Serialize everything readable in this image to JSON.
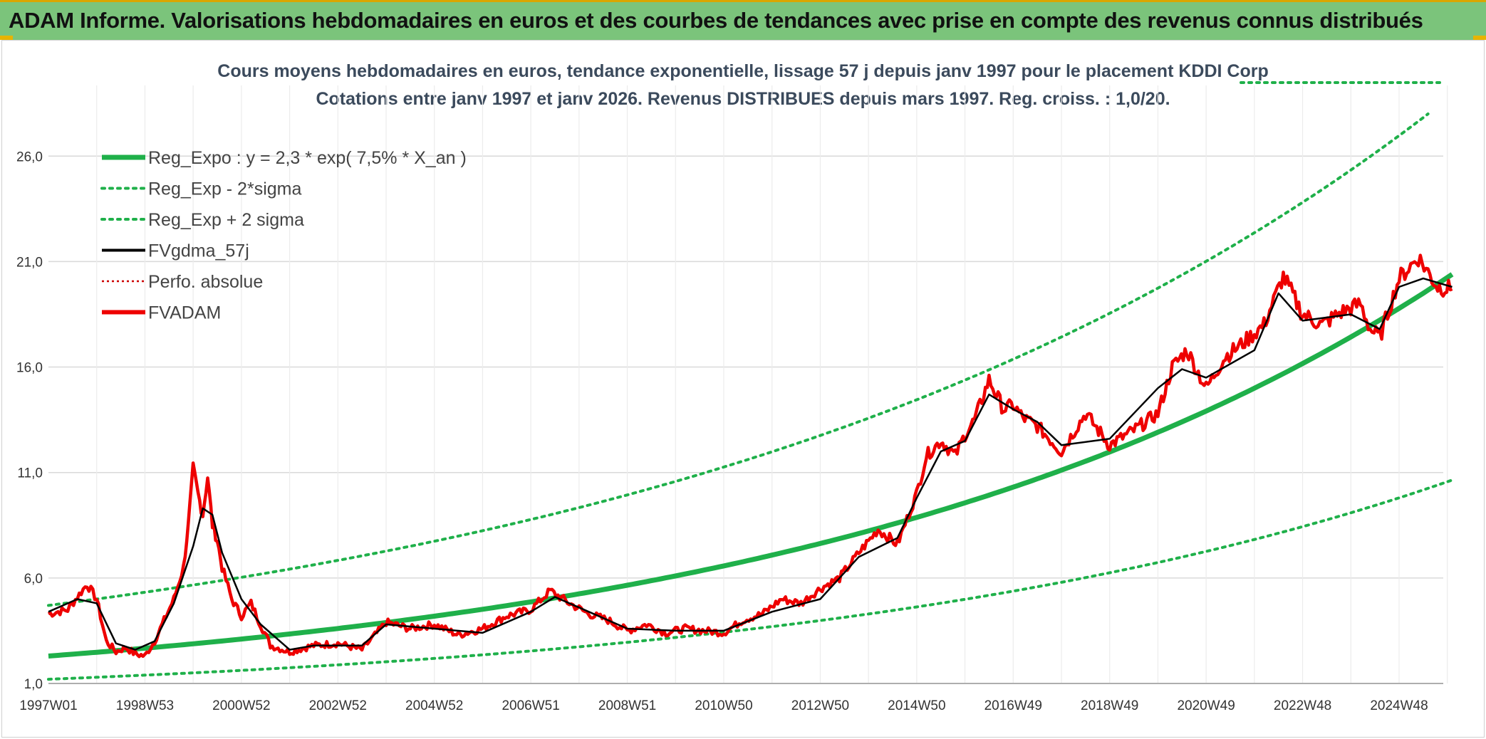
{
  "header": {
    "title": "ADAM Informe. Valorisations hebdomadaires en euros et des courbes de tendances avec prise en compte des revenus connus distribués"
  },
  "colors": {
    "banner": "#7bc47b",
    "regression": "#1fb04a",
    "smoothed": "#000000",
    "adam": "#ee0000",
    "perfo": "#cc0000"
  },
  "chart_data": {
    "type": "line",
    "title": "Cours moyens hebdomadaires en euros, tendance exponentielle, lissage 57 j depuis janv 1997 pour le placement KDDI Corp",
    "subtitle": "Cotations entre janv 1997 et janv 2026. Revenus DISTRIBUES depuis mars 1997. Reg. croiss. : 1,0/20.",
    "xlabel": "",
    "ylabel": "",
    "x_unit": "years since 1997W01",
    "xlim": [
      0,
      29.1
    ],
    "ylim": [
      1.0,
      28.0
    ],
    "x_ticks": [
      {
        "label": "1997W01",
        "x": 0
      },
      {
        "label": "1998W53",
        "x": 2
      },
      {
        "label": "2000W52",
        "x": 4
      },
      {
        "label": "2002W52",
        "x": 6
      },
      {
        "label": "2004W52",
        "x": 8
      },
      {
        "label": "2006W51",
        "x": 10
      },
      {
        "label": "2008W51",
        "x": 12
      },
      {
        "label": "2010W50",
        "x": 14
      },
      {
        "label": "2012W50",
        "x": 16
      },
      {
        "label": "2014W50",
        "x": 18
      },
      {
        "label": "2016W49",
        "x": 20
      },
      {
        "label": "2018W49",
        "x": 22
      },
      {
        "label": "2020W49",
        "x": 24
      },
      {
        "label": "2022W48",
        "x": 26
      },
      {
        "label": "2024W48",
        "x": 28
      }
    ],
    "y_ticks": [
      {
        "label": "1,0",
        "y": 1.0
      },
      {
        "label": "6,0",
        "y": 6.0
      },
      {
        "label": "11,0",
        "y": 11.0
      },
      {
        "label": "16,0",
        "y": 16.0
      },
      {
        "label": "21,0",
        "y": 21.0
      },
      {
        "label": "26,0",
        "y": 26.0
      }
    ],
    "legend": [
      {
        "label": "Reg_Expo : y = 2,3 * exp( 7,5% *  X_an )",
        "style": "solid-thick",
        "color": "#1fb04a"
      },
      {
        "label": "Reg_Exp - 2*sigma",
        "style": "dotted",
        "color": "#1fb04a"
      },
      {
        "label": "Reg_Exp + 2 sigma",
        "style": "dotted",
        "color": "#1fb04a"
      },
      {
        "label": "FVgdma_57j",
        "style": "solid",
        "color": "#000000"
      },
      {
        "label": "Perfo. absolue",
        "style": "dotted-thin",
        "color": "#cc0000"
      },
      {
        "label": "FVADAM",
        "style": "solid-thick",
        "color": "#ee0000"
      }
    ],
    "legend_position": "top-left",
    "series": [
      {
        "name": "Reg_Expo : y = 2,3 * exp( 7,5% *  X_an )",
        "kind": "exponential",
        "a": 2.3,
        "rate": 0.075,
        "x": [
          0,
          29.1
        ]
      },
      {
        "name": "Reg_Exp - 2*sigma",
        "kind": "exponential",
        "a": 1.2,
        "rate": 0.075,
        "x": [
          0,
          29.1
        ]
      },
      {
        "name": "Reg_Exp + 2 sigma",
        "kind": "exponential",
        "a": 4.7,
        "rate": 0.0624,
        "x": [
          0,
          29.1
        ],
        "clip_above_ylim": true
      },
      {
        "name": "FVADAM",
        "x": [
          0,
          0.4,
          0.8,
          1.0,
          1.2,
          1.4,
          1.6,
          1.8,
          2.0,
          2.2,
          2.4,
          2.6,
          2.8,
          2.9,
          3.0,
          3.1,
          3.2,
          3.3,
          3.4,
          3.5,
          3.6,
          3.8,
          4.0,
          4.2,
          4.6,
          5.0,
          5.5,
          6.0,
          6.5,
          7.0,
          7.5,
          8.0,
          8.5,
          9.0,
          9.5,
          10.0,
          10.4,
          10.8,
          11.2,
          11.6,
          12.0,
          12.4,
          12.8,
          13.2,
          13.6,
          14.0,
          14.4,
          14.8,
          15.2,
          15.6,
          16.0,
          16.4,
          16.8,
          17.2,
          17.6,
          18.0,
          18.2,
          18.5,
          18.8,
          19.0,
          19.2,
          19.5,
          19.8,
          20.0,
          20.2,
          20.5,
          21.0,
          21.5,
          22.0,
          22.5,
          23.0,
          23.3,
          23.6,
          24.0,
          24.4,
          24.8,
          25.2,
          25.6,
          26.0,
          26.4,
          26.8,
          27.2,
          27.4,
          27.6,
          28.0,
          28.4,
          28.8,
          29.1
        ],
        "values": [
          4.3,
          4.5,
          5.7,
          5.0,
          3.0,
          2.5,
          2.7,
          2.4,
          2.3,
          3.0,
          4.0,
          5.0,
          6.5,
          8.5,
          11.2,
          10.0,
          9.0,
          10.8,
          8.5,
          7.8,
          6.5,
          5.0,
          4.2,
          4.8,
          2.8,
          2.5,
          2.8,
          2.9,
          2.6,
          3.9,
          3.6,
          3.8,
          3.3,
          3.6,
          4.2,
          4.5,
          5.4,
          4.8,
          4.3,
          4.0,
          3.5,
          3.8,
          3.4,
          3.6,
          3.5,
          3.4,
          4.0,
          4.3,
          5.0,
          4.8,
          5.5,
          6.0,
          7.2,
          8.3,
          7.6,
          10.0,
          11.8,
          12.5,
          11.8,
          12.8,
          13.5,
          15.4,
          14.0,
          14.2,
          13.6,
          13.2,
          12.0,
          13.8,
          12.3,
          13.0,
          13.8,
          16.0,
          16.8,
          15.0,
          16.5,
          17.2,
          18.0,
          20.3,
          18.5,
          18.0,
          18.6,
          19.0,
          17.8,
          17.4,
          20.2,
          21.2,
          19.8,
          19.7
        ]
      },
      {
        "name": "FVgdma_57j",
        "x": [
          0,
          0.6,
          1.0,
          1.4,
          1.8,
          2.2,
          2.6,
          3.0,
          3.2,
          3.4,
          3.6,
          4.0,
          4.4,
          5.0,
          5.5,
          6.0,
          6.5,
          7.0,
          8.0,
          9.0,
          10.0,
          10.5,
          11.0,
          12.0,
          13.0,
          14.0,
          15.0,
          16.0,
          16.8,
          17.6,
          18.0,
          18.5,
          19.0,
          19.5,
          20.0,
          20.5,
          21.0,
          22.0,
          23.0,
          23.5,
          24.0,
          25.0,
          25.5,
          26.0,
          27.0,
          27.6,
          28.0,
          28.5,
          29.1
        ],
        "values": [
          4.4,
          5.0,
          4.8,
          2.9,
          2.6,
          3.0,
          4.8,
          7.5,
          9.3,
          9.0,
          7.2,
          5.0,
          3.8,
          2.6,
          2.8,
          2.8,
          2.8,
          3.8,
          3.6,
          3.4,
          4.4,
          5.1,
          4.6,
          3.6,
          3.5,
          3.5,
          4.4,
          5.0,
          7.0,
          7.9,
          9.8,
          12.0,
          12.5,
          14.7,
          14.0,
          13.4,
          12.3,
          12.6,
          15.0,
          15.9,
          15.5,
          16.8,
          19.5,
          18.2,
          18.5,
          17.8,
          19.8,
          20.2,
          19.8
        ]
      }
    ]
  }
}
